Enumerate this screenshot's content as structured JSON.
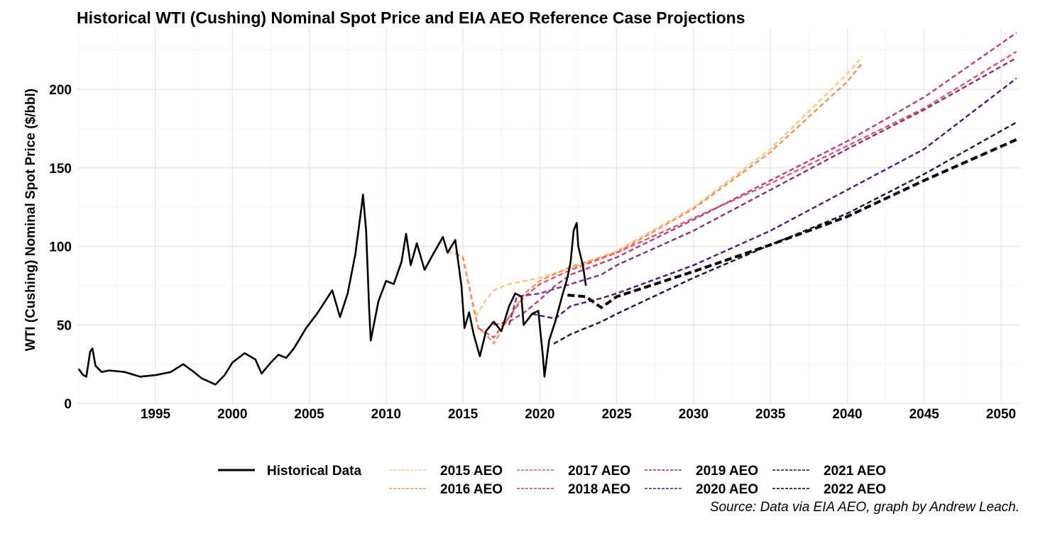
{
  "chart_data": {
    "type": "line",
    "title": "Historical WTI (Cushing) Nominal Spot Price and EIA AEO Reference Case Projections",
    "ylabel": "WTI (Cushing) Nominal Spot Price ($/bbl)",
    "xlabel": "",
    "caption": "Source: Data via EIA AEO, graph by Andrew Leach.",
    "xlim": [
      1990,
      2051
    ],
    "ylim": [
      0,
      235
    ],
    "x_ticks": [
      1995,
      2000,
      2005,
      2010,
      2015,
      2020,
      2025,
      2030,
      2035,
      2040,
      2045,
      2050
    ],
    "y_ticks": [
      0,
      50,
      100,
      150,
      200
    ],
    "grid": true,
    "legend_position": "bottom",
    "legend": [
      "Historical Data",
      "2015 AEO",
      "2016 AEO",
      "2017 AEO",
      "2018 AEO",
      "2019 AEO",
      "2020 AEO",
      "2021 AEO",
      "2022 AEO"
    ],
    "series": [
      {
        "name": "Historical Data",
        "color": "#000000",
        "style": "solid",
        "points": [
          [
            1990.0,
            22
          ],
          [
            1990.3,
            18
          ],
          [
            1990.5,
            17
          ],
          [
            1990.75,
            33
          ],
          [
            1990.9,
            35
          ],
          [
            1991.1,
            24
          ],
          [
            1991.5,
            20
          ],
          [
            1992.0,
            21
          ],
          [
            1993.0,
            20
          ],
          [
            1994.0,
            17
          ],
          [
            1995.0,
            18
          ],
          [
            1996.0,
            20
          ],
          [
            1996.8,
            25
          ],
          [
            1997.5,
            20
          ],
          [
            1998.0,
            16
          ],
          [
            1998.9,
            12
          ],
          [
            1999.5,
            18
          ],
          [
            2000.0,
            26
          ],
          [
            2000.8,
            32
          ],
          [
            2001.5,
            28
          ],
          [
            2001.9,
            19
          ],
          [
            2002.5,
            26
          ],
          [
            2003.0,
            31
          ],
          [
            2003.5,
            29
          ],
          [
            2004.0,
            35
          ],
          [
            2004.8,
            48
          ],
          [
            2005.5,
            57
          ],
          [
            2006.5,
            72
          ],
          [
            2007.0,
            55
          ],
          [
            2007.5,
            70
          ],
          [
            2008.0,
            95
          ],
          [
            2008.4,
            125
          ],
          [
            2008.5,
            133
          ],
          [
            2008.7,
            110
          ],
          [
            2008.9,
            60
          ],
          [
            2009.0,
            40
          ],
          [
            2009.5,
            65
          ],
          [
            2010.0,
            78
          ],
          [
            2010.5,
            76
          ],
          [
            2011.0,
            90
          ],
          [
            2011.3,
            108
          ],
          [
            2011.6,
            88
          ],
          [
            2012.0,
            102
          ],
          [
            2012.5,
            85
          ],
          [
            2013.0,
            94
          ],
          [
            2013.7,
            106
          ],
          [
            2014.0,
            96
          ],
          [
            2014.5,
            104
          ],
          [
            2014.9,
            75
          ],
          [
            2015.1,
            48
          ],
          [
            2015.4,
            58
          ],
          [
            2015.7,
            44
          ],
          [
            2016.1,
            30
          ],
          [
            2016.5,
            46
          ],
          [
            2017.0,
            52
          ],
          [
            2017.5,
            46
          ],
          [
            2018.0,
            62
          ],
          [
            2018.4,
            70
          ],
          [
            2018.8,
            68
          ],
          [
            2018.95,
            50
          ],
          [
            2019.5,
            57
          ],
          [
            2019.9,
            59
          ],
          [
            2020.2,
            30
          ],
          [
            2020.3,
            17
          ],
          [
            2020.6,
            40
          ],
          [
            2021.0,
            52
          ],
          [
            2021.5,
            70
          ],
          [
            2021.8,
            80
          ],
          [
            2022.0,
            90
          ],
          [
            2022.2,
            110
          ],
          [
            2022.4,
            115
          ],
          [
            2022.5,
            100
          ],
          [
            2022.8,
            88
          ],
          [
            2023.0,
            75
          ]
        ]
      },
      {
        "name": "2015 AEO",
        "color": "#fcc87e",
        "style": "dashed",
        "points": [
          [
            2014.0,
            97
          ],
          [
            2015.0,
            93
          ],
          [
            2015.8,
            55
          ],
          [
            2016.5,
            66
          ],
          [
            2017.0,
            72
          ],
          [
            2018.0,
            76
          ],
          [
            2020.0,
            80
          ],
          [
            2022.0,
            86
          ],
          [
            2025.0,
            97
          ],
          [
            2030.0,
            125
          ],
          [
            2035.0,
            162
          ],
          [
            2040.0,
            210
          ],
          [
            2041.0,
            221
          ]
        ]
      },
      {
        "name": "2016 AEO",
        "color": "#f98d58",
        "style": "dashed",
        "points": [
          [
            2014.5,
            96
          ],
          [
            2015.0,
            93
          ],
          [
            2015.5,
            70
          ],
          [
            2016.0,
            48
          ],
          [
            2016.5,
            44
          ],
          [
            2017.0,
            38
          ],
          [
            2018.0,
            55
          ],
          [
            2019.0,
            70
          ],
          [
            2020.0,
            78
          ],
          [
            2022.0,
            87
          ],
          [
            2025.0,
            96
          ],
          [
            2030.0,
            124
          ],
          [
            2035.0,
            160
          ],
          [
            2040.0,
            205
          ],
          [
            2041.0,
            217
          ]
        ]
      },
      {
        "name": "2017 AEO",
        "color": "#e85460",
        "style": "dashed",
        "points": [
          [
            2016.0,
            48
          ],
          [
            2017.0,
            42
          ],
          [
            2018.0,
            55
          ],
          [
            2019.0,
            68
          ],
          [
            2020.0,
            76
          ],
          [
            2022.0,
            85
          ],
          [
            2025.0,
            96
          ],
          [
            2030.0,
            118
          ],
          [
            2035.0,
            140
          ],
          [
            2040.0,
            164
          ],
          [
            2045.0,
            188
          ],
          [
            2051.0,
            224
          ]
        ]
      },
      {
        "name": "2018 AEO",
        "color": "#c03b7b",
        "style": "dashed",
        "points": [
          [
            2017.0,
            50
          ],
          [
            2018.0,
            52
          ],
          [
            2019.0,
            58
          ],
          [
            2020.0,
            66
          ],
          [
            2021.0,
            75
          ],
          [
            2022.0,
            82
          ],
          [
            2025.0,
            93
          ],
          [
            2030.0,
            117
          ],
          [
            2035.0,
            142
          ],
          [
            2040.0,
            167
          ],
          [
            2045.0,
            195
          ],
          [
            2051.0,
            236
          ]
        ]
      },
      {
        "name": "2019 AEO",
        "color": "#8c2b82",
        "style": "dashed",
        "points": [
          [
            2018.0,
            50
          ],
          [
            2018.5,
            68
          ],
          [
            2020.0,
            70
          ],
          [
            2021.0,
            73
          ],
          [
            2022.0,
            76
          ],
          [
            2024.0,
            82
          ],
          [
            2025.0,
            88
          ],
          [
            2030.0,
            110
          ],
          [
            2035.0,
            136
          ],
          [
            2040.0,
            162
          ],
          [
            2045.0,
            187
          ],
          [
            2051.0,
            220
          ]
        ]
      },
      {
        "name": "2020 AEO",
        "color": "#521580",
        "style": "dashed",
        "points": [
          [
            2019.5,
            57
          ],
          [
            2020.5,
            55
          ],
          [
            2021.0,
            54
          ],
          [
            2022.0,
            62
          ],
          [
            2024.0,
            67
          ],
          [
            2025.0,
            70
          ],
          [
            2030.0,
            88
          ],
          [
            2035.0,
            110
          ],
          [
            2040.0,
            136
          ],
          [
            2045.0,
            162
          ],
          [
            2051.0,
            207
          ]
        ]
      },
      {
        "name": "2021 AEO",
        "color": "#1d1147",
        "style": "dashed",
        "points": [
          [
            2020.9,
            38
          ],
          [
            2022.0,
            44
          ],
          [
            2024.0,
            52
          ],
          [
            2025.0,
            57
          ],
          [
            2030.0,
            80
          ],
          [
            2035.0,
            101
          ],
          [
            2040.0,
            121
          ],
          [
            2045.0,
            146
          ],
          [
            2051.0,
            179
          ]
        ]
      },
      {
        "name": "2022 AEO",
        "color": "#000000",
        "style": "dashed-thick",
        "points": [
          [
            2021.8,
            69
          ],
          [
            2023.0,
            68
          ],
          [
            2024.0,
            61
          ],
          [
            2025.0,
            68
          ],
          [
            2030.0,
            84
          ],
          [
            2035.0,
            101
          ],
          [
            2040.0,
            119
          ],
          [
            2045.0,
            142
          ],
          [
            2051.0,
            168
          ]
        ]
      }
    ]
  }
}
